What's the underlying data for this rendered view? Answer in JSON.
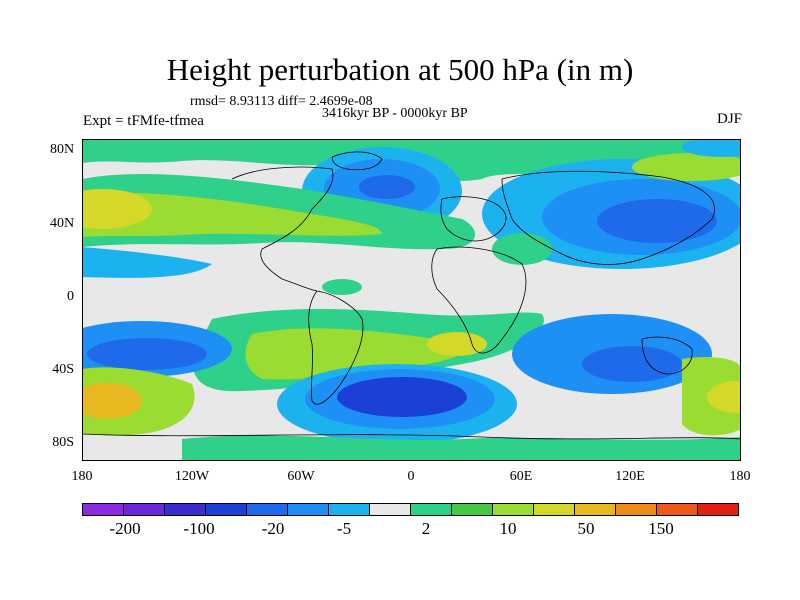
{
  "title": "Height perturbation at 500 hPa (in m)",
  "stats": "rmsd= 8.93113 diff= 2.4699e-08",
  "period": "3416kyr BP - 0000kyr BP",
  "experiment": "Expt = tFMfe-tfmea",
  "season": "DJF",
  "lat_labels": [
    "80N",
    "40N",
    "0",
    "40S",
    "80S"
  ],
  "lon_labels": [
    "180",
    "120W",
    "60W",
    "0",
    "60E",
    "120E",
    "180"
  ],
  "colorbar": {
    "colors": [
      "#8a2be2",
      "#6a28d8",
      "#3b2ccc",
      "#1c40d6",
      "#1f6aea",
      "#1e90f5",
      "#1cb2f0",
      "#e8e8e8",
      "#2fd08a",
      "#46c840",
      "#9bdc32",
      "#d4d828",
      "#e8b820",
      "#ec8a1a",
      "#ec5a1a",
      "#e02010"
    ],
    "labels": [
      "-200",
      "-100",
      "-20",
      "-5",
      "2",
      "10",
      "50",
      "150"
    ]
  },
  "colors": {
    "background": "#e8e8e8",
    "ocean_neutral": "#e8e8e8",
    "strong_low": "#1c40d6",
    "low": "#1e90f5",
    "weak_low": "#1cb2f0",
    "weak_high": "#2fd08a",
    "high": "#9bdc32",
    "strong_high": "#e8b820"
  }
}
